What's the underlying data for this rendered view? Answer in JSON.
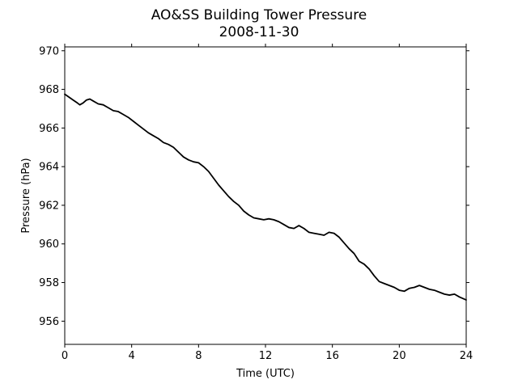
{
  "chart_data": {
    "type": "line",
    "title": "AO&SS Building Tower Pressure",
    "subtitle": "2008-11-30",
    "xlabel": "Time (UTC)",
    "ylabel": "Pressure (hPa)",
    "xlim": [
      0,
      24
    ],
    "ylim": [
      954.8,
      970.2
    ],
    "xticks": [
      0,
      4,
      8,
      12,
      16,
      20,
      24
    ],
    "xtick_labels": [
      "0",
      "4",
      "8",
      "12",
      "16",
      "20",
      "24"
    ],
    "yticks": [
      956,
      958,
      960,
      962,
      964,
      966,
      968,
      970
    ],
    "ytick_labels": [
      "956",
      "958",
      "960",
      "962",
      "964",
      "966",
      "968",
      "970"
    ],
    "grid": false,
    "series": [
      {
        "color": "#000000",
        "x": [
          0,
          0.25,
          0.5,
          0.75,
          0.9,
          1.1,
          1.3,
          1.5,
          1.7,
          2.0,
          2.3,
          2.6,
          2.9,
          3.2,
          3.5,
          3.8,
          4.1,
          4.4,
          4.7,
          5.0,
          5.3,
          5.6,
          5.9,
          6.2,
          6.5,
          6.8,
          7.1,
          7.4,
          7.7,
          8.0,
          8.3,
          8.6,
          8.9,
          9.2,
          9.5,
          9.8,
          10.1,
          10.4,
          10.7,
          11.0,
          11.3,
          11.6,
          11.9,
          12.2,
          12.5,
          12.8,
          13.1,
          13.4,
          13.7,
          14.0,
          14.3,
          14.6,
          14.9,
          15.2,
          15.5,
          15.8,
          16.1,
          16.4,
          16.7,
          17.0,
          17.3,
          17.6,
          17.9,
          18.2,
          18.5,
          18.8,
          19.1,
          19.4,
          19.7,
          20.0,
          20.3,
          20.6,
          20.9,
          21.2,
          21.5,
          21.8,
          22.1,
          22.4,
          22.7,
          23.0,
          23.3,
          23.6,
          24.0
        ],
        "y": [
          967.75,
          967.6,
          967.45,
          967.3,
          967.2,
          967.3,
          967.45,
          967.5,
          967.4,
          967.25,
          967.2,
          967.05,
          966.9,
          966.85,
          966.7,
          966.55,
          966.35,
          966.15,
          965.95,
          965.75,
          965.6,
          965.45,
          965.25,
          965.15,
          965.0,
          964.75,
          964.5,
          964.35,
          964.25,
          964.2,
          964.0,
          963.75,
          963.4,
          963.05,
          962.75,
          962.45,
          962.2,
          962.0,
          961.7,
          961.5,
          961.35,
          961.3,
          961.25,
          961.3,
          961.25,
          961.15,
          961.0,
          960.85,
          960.8,
          960.95,
          960.8,
          960.6,
          960.55,
          960.5,
          960.45,
          960.6,
          960.55,
          960.35,
          960.05,
          959.75,
          959.5,
          959.1,
          958.95,
          958.7,
          958.35,
          958.05,
          957.95,
          957.85,
          957.75,
          957.6,
          957.55,
          957.7,
          957.75,
          957.85,
          957.75,
          957.65,
          957.6,
          957.5,
          957.4,
          957.35,
          957.4,
          957.25,
          957.1
        ]
      }
    ]
  }
}
